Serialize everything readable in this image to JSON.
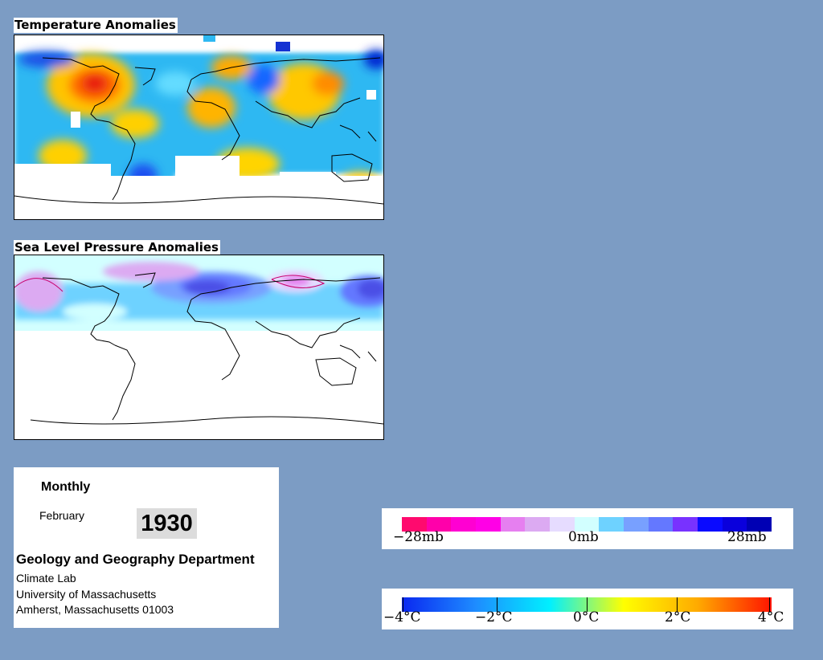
{
  "maps": {
    "temperature": {
      "title": "Temperature Anomalies"
    },
    "pressure": {
      "title": "Sea Level Pressure Anomalies"
    }
  },
  "info": {
    "frequency": "Monthly",
    "month": "February",
    "year": "1930",
    "department": "Geology and Geography Department",
    "lab": "Climate Lab",
    "university": "University of Massachusetts",
    "address": "Amherst, Massachusetts 01003"
  },
  "pressure_legend": {
    "labels": [
      "−28mb",
      "0mb",
      "28mb"
    ],
    "colors": [
      "#ff0a6e",
      "#ff00aa",
      "#ff00d2",
      "#ff00e6",
      "#e67ff0",
      "#dcaaf2",
      "#e6dcff",
      "#d2ffff",
      "#6ed2ff",
      "#78a0ff",
      "#6478ff",
      "#7832ff",
      "#0a0aff",
      "#0a00dc",
      "#0000b4"
    ]
  },
  "temperature_legend": {
    "labels": [
      "−4°C",
      "−2°C",
      "0°C",
      "2°C",
      "4°C"
    ],
    "gradient": [
      "#0a28f0",
      "#1e8cff",
      "#00f0ff",
      "#ffff00",
      "#ffaa00",
      "#ff1400"
    ]
  },
  "colors": {
    "background": "#7c9cc4"
  }
}
